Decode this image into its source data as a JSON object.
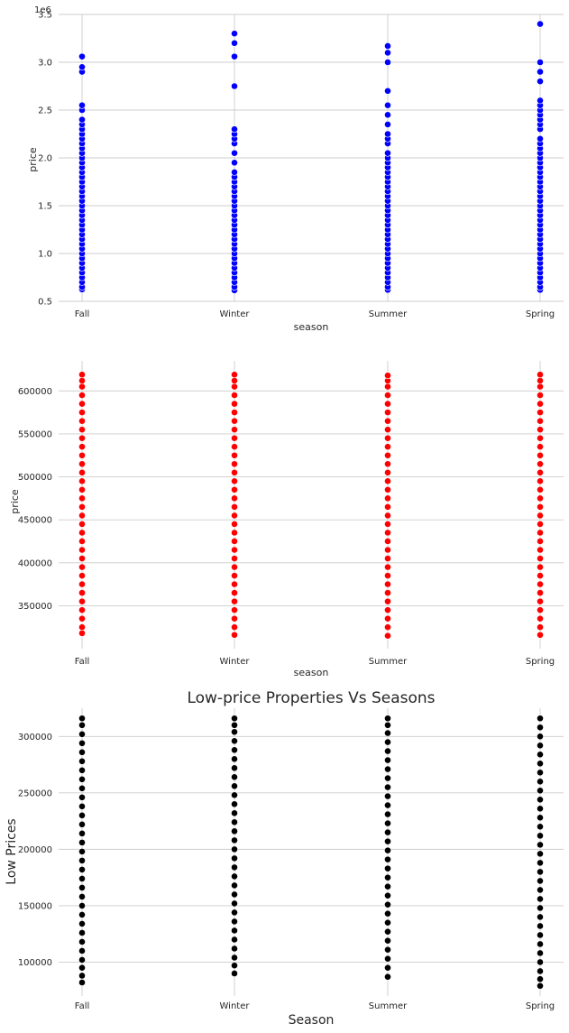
{
  "chart_data": [
    {
      "type": "scatter",
      "title": "",
      "xlabel": "season",
      "ylabel": "price",
      "y_offset_text": "1e6",
      "categories": [
        "Fall",
        "Winter",
        "Summer",
        "Spring"
      ],
      "ylim": [
        500000,
        3500000
      ],
      "y_ticks": [
        500000,
        1000000,
        1500000,
        2000000,
        2500000,
        3000000,
        3500000
      ],
      "y_tick_labels": [
        "0.5",
        "1.0",
        "1.5",
        "2.0",
        "2.5",
        "3.0",
        "3.5"
      ],
      "grid": true,
      "marker_color": "#0000ff",
      "series": [
        {
          "category": "Fall",
          "values": [
            625000,
            650000,
            700000,
            750000,
            800000,
            850000,
            900000,
            950000,
            1000000,
            1050000,
            1100000,
            1150000,
            1200000,
            1250000,
            1300000,
            1350000,
            1400000,
            1450000,
            1500000,
            1550000,
            1600000,
            1650000,
            1700000,
            1750000,
            1800000,
            1850000,
            1900000,
            1950000,
            2000000,
            2050000,
            2100000,
            2150000,
            2200000,
            2250000,
            2300000,
            2350000,
            2400000,
            2500000,
            2550000,
            2900000,
            2950000,
            3060000
          ]
        },
        {
          "category": "Winter",
          "values": [
            615000,
            650000,
            700000,
            750000,
            800000,
            850000,
            900000,
            950000,
            1000000,
            1050000,
            1100000,
            1150000,
            1200000,
            1250000,
            1300000,
            1350000,
            1400000,
            1450000,
            1500000,
            1550000,
            1600000,
            1650000,
            1700000,
            1750000,
            1800000,
            1850000,
            1950000,
            2050000,
            2150000,
            2200000,
            2250000,
            2300000,
            2750000,
            3060000,
            3200000,
            3300000
          ]
        },
        {
          "category": "Summer",
          "values": [
            620000,
            650000,
            700000,
            750000,
            800000,
            850000,
            900000,
            950000,
            1000000,
            1050000,
            1100000,
            1150000,
            1200000,
            1250000,
            1300000,
            1350000,
            1400000,
            1450000,
            1500000,
            1550000,
            1600000,
            1650000,
            1700000,
            1750000,
            1800000,
            1850000,
            1900000,
            1950000,
            2000000,
            2050000,
            2150000,
            2200000,
            2250000,
            2350000,
            2450000,
            2550000,
            2700000,
            3000000,
            3100000,
            3170000
          ]
        },
        {
          "category": "Spring",
          "values": [
            620000,
            650000,
            700000,
            750000,
            800000,
            850000,
            900000,
            950000,
            1000000,
            1050000,
            1100000,
            1150000,
            1200000,
            1250000,
            1300000,
            1350000,
            1400000,
            1450000,
            1500000,
            1550000,
            1600000,
            1650000,
            1700000,
            1750000,
            1800000,
            1850000,
            1900000,
            1950000,
            2000000,
            2050000,
            2100000,
            2150000,
            2200000,
            2300000,
            2350000,
            2400000,
            2450000,
            2500000,
            2550000,
            2600000,
            2800000,
            2900000,
            3000000,
            3400000
          ]
        }
      ]
    },
    {
      "type": "scatter",
      "title": "",
      "xlabel": "season",
      "ylabel": "price",
      "categories": [
        "Fall",
        "Winter",
        "Summer",
        "Spring"
      ],
      "ylim": [
        300000,
        635000
      ],
      "y_ticks": [
        350000,
        400000,
        450000,
        500000,
        550000,
        600000
      ],
      "y_tick_labels": [
        "350000",
        "400000",
        "450000",
        "500000",
        "550000",
        "600000"
      ],
      "grid": true,
      "marker_color": "#ff0000",
      "series": [
        {
          "category": "Fall",
          "values": [
            318000,
            325000,
            335000,
            345000,
            355000,
            365000,
            375000,
            385000,
            395000,
            405000,
            415000,
            425000,
            435000,
            445000,
            455000,
            465000,
            475000,
            485000,
            495000,
            505000,
            515000,
            525000,
            535000,
            545000,
            555000,
            565000,
            575000,
            585000,
            595000,
            605000,
            612000,
            619000
          ]
        },
        {
          "category": "Winter",
          "values": [
            316000,
            325000,
            335000,
            345000,
            355000,
            365000,
            375000,
            385000,
            395000,
            405000,
            415000,
            425000,
            435000,
            445000,
            455000,
            465000,
            475000,
            485000,
            495000,
            505000,
            515000,
            525000,
            535000,
            545000,
            555000,
            565000,
            575000,
            585000,
            595000,
            605000,
            612000,
            619000
          ]
        },
        {
          "category": "Summer",
          "values": [
            315000,
            325000,
            335000,
            345000,
            355000,
            365000,
            375000,
            385000,
            395000,
            405000,
            415000,
            425000,
            435000,
            445000,
            455000,
            465000,
            475000,
            485000,
            495000,
            505000,
            515000,
            525000,
            535000,
            545000,
            555000,
            565000,
            575000,
            585000,
            595000,
            605000,
            612000,
            618000
          ]
        },
        {
          "category": "Spring",
          "values": [
            316000,
            325000,
            335000,
            345000,
            355000,
            365000,
            375000,
            385000,
            395000,
            405000,
            415000,
            425000,
            435000,
            445000,
            455000,
            465000,
            475000,
            485000,
            495000,
            505000,
            515000,
            525000,
            535000,
            545000,
            555000,
            565000,
            575000,
            585000,
            595000,
            605000,
            612000,
            619000
          ]
        }
      ]
    },
    {
      "type": "scatter",
      "title": "Low-price Properties Vs Seasons",
      "xlabel": "Season",
      "ylabel": "Low Prices",
      "categories": [
        "Fall",
        "Winter",
        "Summer",
        "Spring"
      ],
      "ylim": [
        70000,
        325000
      ],
      "y_ticks": [
        100000,
        150000,
        200000,
        250000,
        300000
      ],
      "y_tick_labels": [
        "100000",
        "150000",
        "200000",
        "250000",
        "300000"
      ],
      "grid": true,
      "marker_color": "#000000",
      "series": [
        {
          "category": "Fall",
          "values": [
            82000,
            88000,
            95000,
            102000,
            110000,
            118000,
            126000,
            134000,
            142000,
            150000,
            158000,
            166000,
            174000,
            182000,
            190000,
            198000,
            206000,
            214000,
            222000,
            230000,
            238000,
            246000,
            254000,
            262000,
            270000,
            278000,
            286000,
            294000,
            302000,
            310000,
            316000
          ]
        },
        {
          "category": "Winter",
          "values": [
            90000,
            97000,
            104000,
            112000,
            120000,
            128000,
            136000,
            144000,
            152000,
            160000,
            168000,
            176000,
            184000,
            192000,
            200000,
            208000,
            216000,
            224000,
            232000,
            240000,
            248000,
            256000,
            264000,
            272000,
            280000,
            288000,
            296000,
            304000,
            310000,
            316000
          ]
        },
        {
          "category": "Summer",
          "values": [
            87000,
            95000,
            103000,
            111000,
            119000,
            127000,
            135000,
            143000,
            151000,
            159000,
            167000,
            175000,
            183000,
            191000,
            199000,
            207000,
            215000,
            223000,
            231000,
            239000,
            247000,
            255000,
            263000,
            271000,
            279000,
            287000,
            295000,
            303000,
            310000,
            316000
          ]
        },
        {
          "category": "Spring",
          "values": [
            79000,
            85000,
            92000,
            100000,
            108000,
            116000,
            124000,
            132000,
            140000,
            148000,
            156000,
            164000,
            172000,
            180000,
            188000,
            196000,
            204000,
            212000,
            220000,
            228000,
            236000,
            244000,
            252000,
            260000,
            268000,
            276000,
            284000,
            292000,
            300000,
            308000,
            316000
          ]
        }
      ]
    }
  ]
}
